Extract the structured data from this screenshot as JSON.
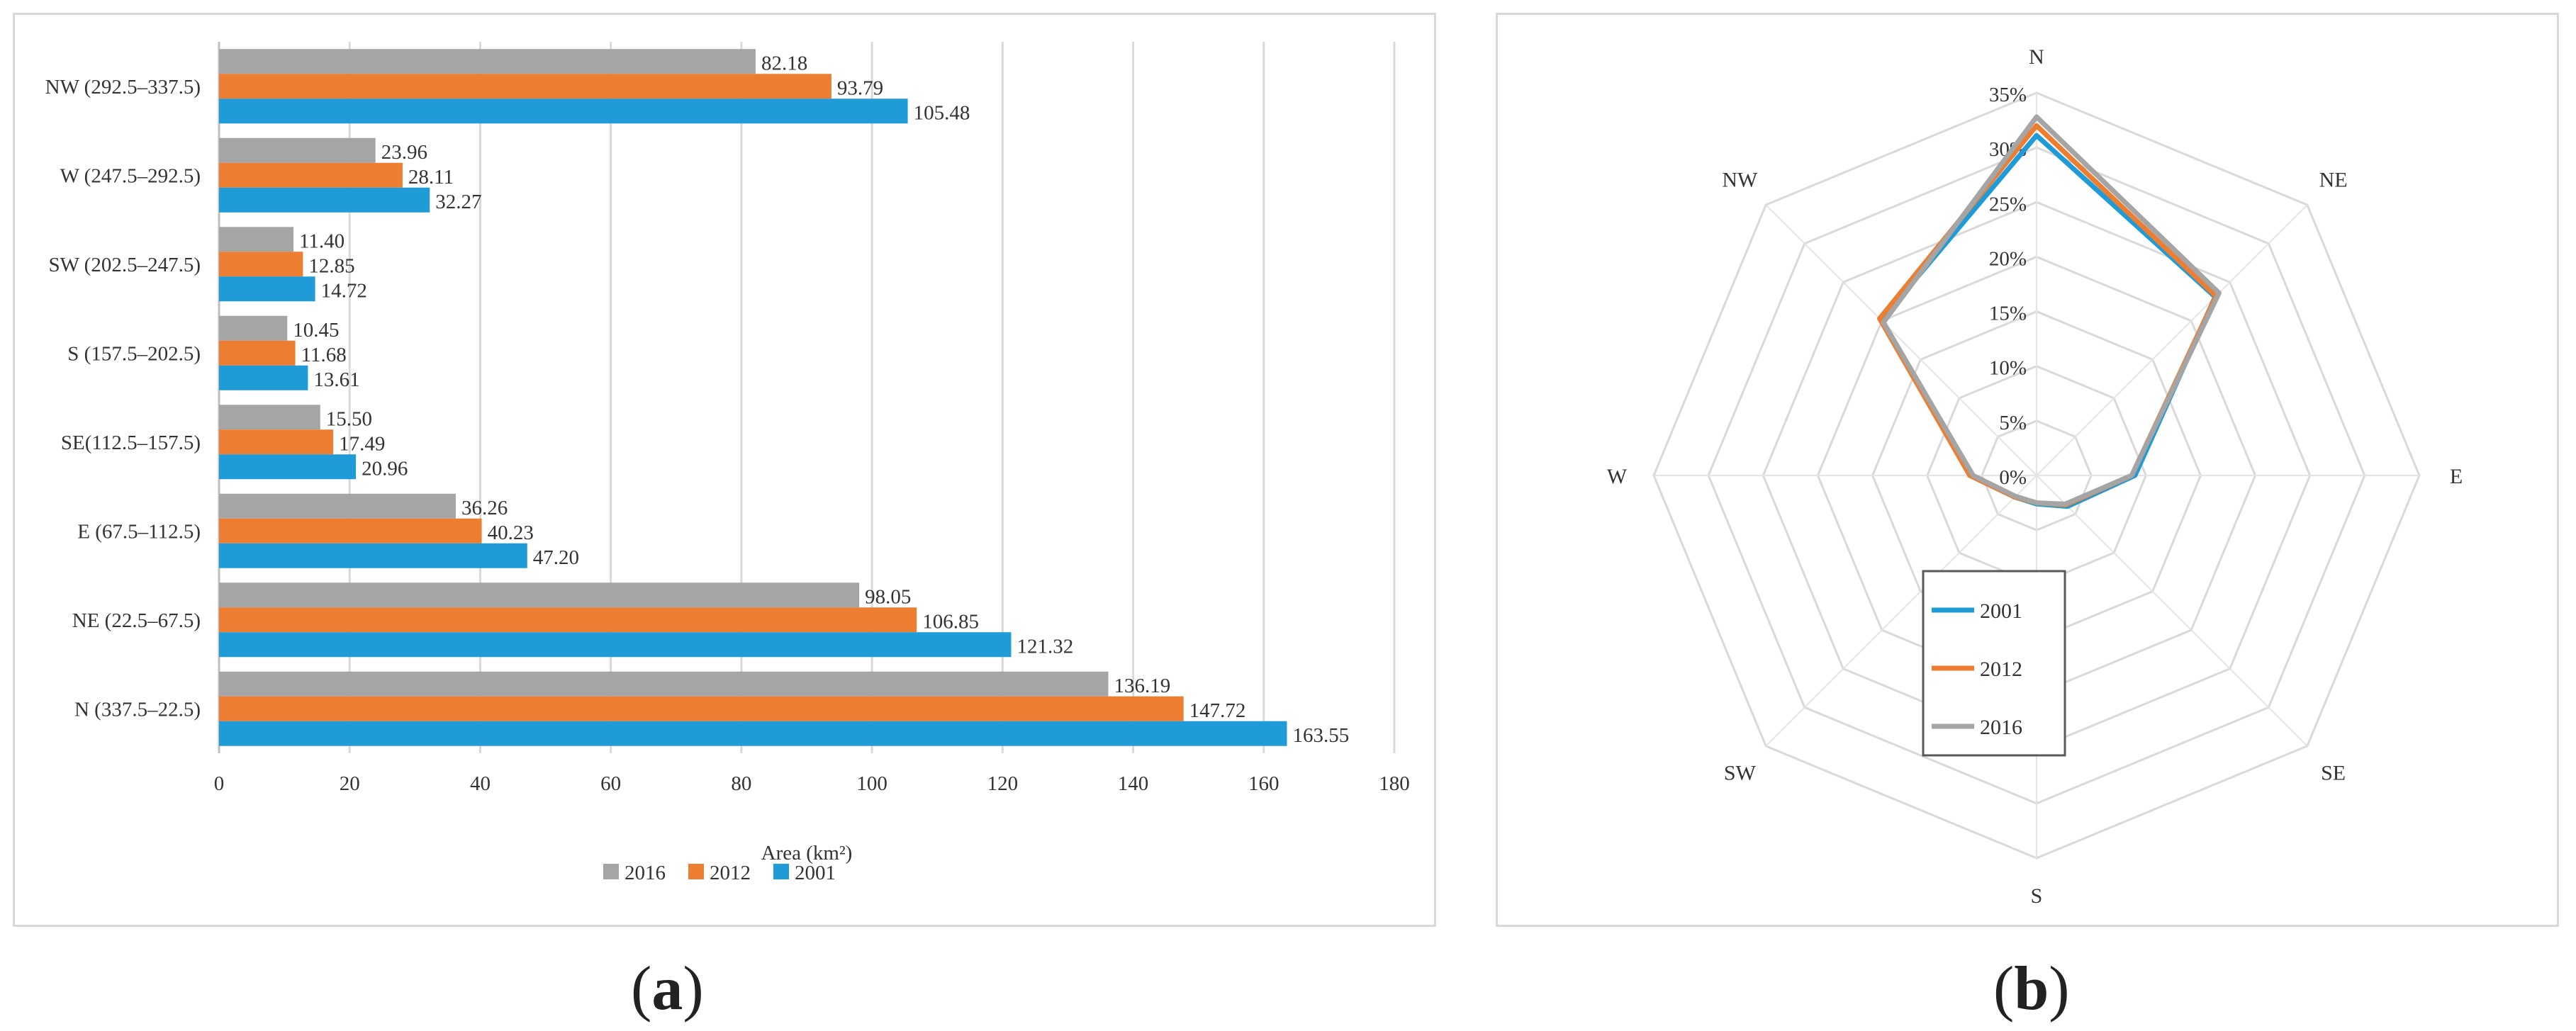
{
  "chart_data": [
    {
      "type": "bar",
      "orientation": "horizontal",
      "categories": [
        "N (337.5–22.5)",
        "NE (22.5–67.5)",
        "E (67.5–112.5)",
        "SE(112.5–157.5)",
        "S (157.5–202.5)",
        "SW (202.5–247.5)",
        "W (247.5–292.5)",
        "NW (292.5–337.5)"
      ],
      "series": [
        {
          "name": "2016",
          "color": "#a5a5a5",
          "values": [
            136.19,
            98.05,
            36.26,
            15.5,
            10.45,
            11.4,
            23.96,
            82.18
          ],
          "labels": [
            "136.19",
            "98.05",
            "36.26",
            "15.50",
            "10.45",
            "11.40",
            "23.96",
            "82.18"
          ]
        },
        {
          "name": "2012",
          "color": "#ed7d31",
          "values": [
            147.72,
            106.85,
            40.23,
            17.49,
            11.68,
            12.85,
            28.11,
            93.79
          ],
          "labels": [
            "147.72",
            "106.85",
            "40.23",
            "17.49",
            "11.68",
            "12.85",
            "28.11",
            "93.79"
          ]
        },
        {
          "name": "2001",
          "color": "#1f9bd7",
          "values": [
            163.55,
            121.32,
            47.2,
            20.96,
            13.61,
            14.72,
            32.27,
            105.48
          ],
          "labels": [
            "163.55",
            "121.32",
            "47.20",
            "20.96",
            "13.61",
            "14.72",
            "32.27",
            "105.48"
          ]
        }
      ],
      "xlim": [
        0,
        180
      ],
      "xticks": [
        "0",
        "20",
        "40",
        "60",
        "80",
        "100",
        "120",
        "140",
        "160",
        "180"
      ],
      "xlabel": "Area (km²)",
      "legend": [
        "2016",
        "2012",
        "2001"
      ],
      "legend_position": "bottom",
      "grid": "vertical"
    },
    {
      "type": "radar",
      "axes": [
        "N",
        "NE",
        "E",
        "SE",
        "S",
        "SW",
        "W",
        "NW"
      ],
      "rlim": [
        0,
        35
      ],
      "rticks": [
        "0%",
        "5%",
        "10%",
        "15%",
        "20%",
        "25%",
        "30%",
        "35%"
      ],
      "series": [
        {
          "name": "2001",
          "color": "#1f9bd7",
          "values": [
            31.1,
            23.1,
            9.0,
            4.0,
            2.6,
            2.8,
            6.1,
            20.1
          ]
        },
        {
          "name": "2012",
          "color": "#ed7d31",
          "values": [
            32.0,
            23.2,
            8.7,
            3.8,
            2.5,
            2.8,
            6.1,
            20.3
          ]
        },
        {
          "name": "2016",
          "color": "#a5a5a5",
          "values": [
            32.8,
            23.6,
            8.7,
            3.7,
            2.5,
            2.7,
            5.8,
            19.8
          ]
        }
      ],
      "legend": [
        "2001",
        "2012",
        "2016"
      ],
      "legend_position": "center-bottom"
    }
  ],
  "captions": {
    "a_open": "(",
    "a_letter": "a",
    "a_close": ")",
    "b_open": "(",
    "b_letter": "b",
    "b_close": ")"
  }
}
